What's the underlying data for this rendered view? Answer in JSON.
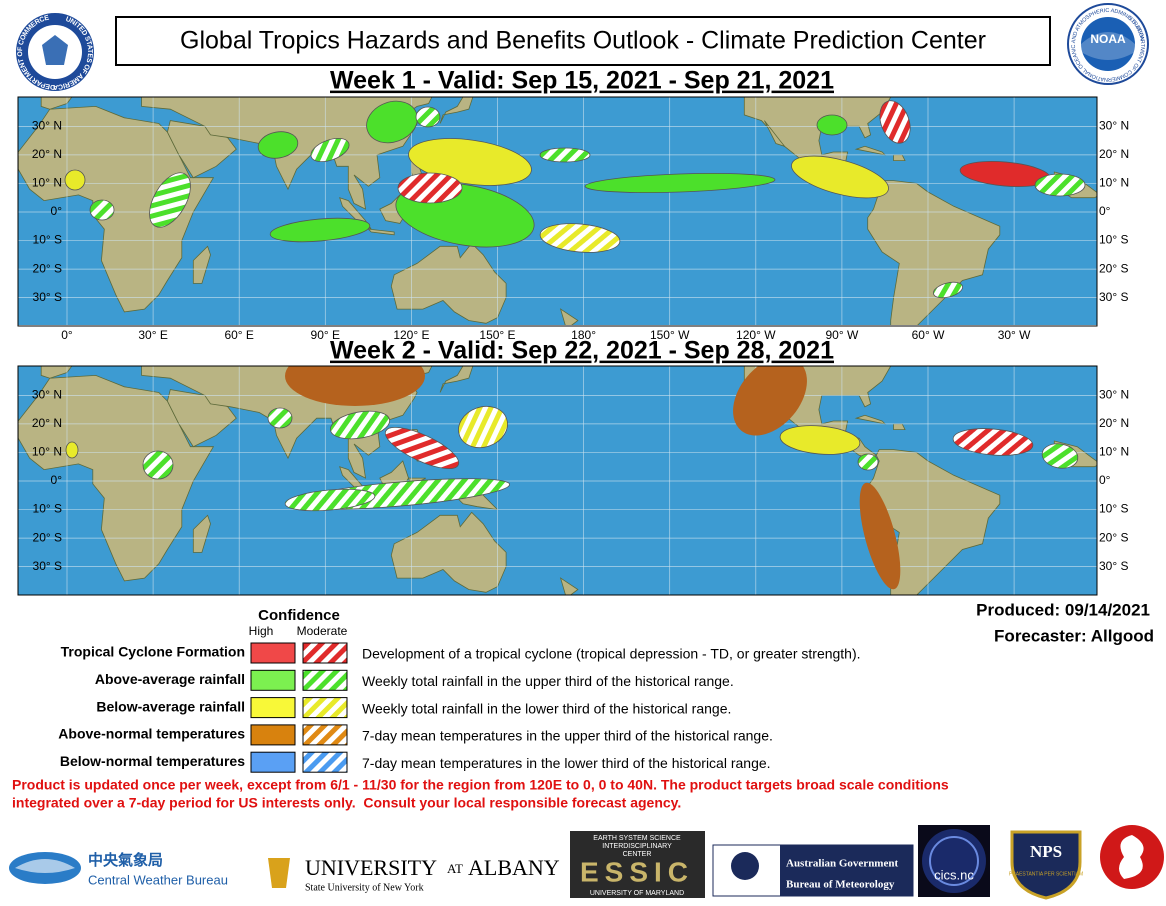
{
  "header": {
    "title": "Global Tropics Hazards and Benefits Outlook - Climate Prediction Center",
    "left_seal": [
      "DEPARTMENT OF COMMERCE",
      "UNITED STATES OF AMERICA"
    ],
    "right_seal": [
      "NATIONAL OCEANIC AND ATMOSPHERIC ADMINISTRATION",
      "U.S. DEPARTMENT OF COMMERCE",
      "NOAA"
    ]
  },
  "maps": [
    {
      "title": "Week 1 - Valid: Sep 15, 2021 - Sep 21, 2021"
    },
    {
      "title": "Week 2 - Valid: Sep 22, 2021 - Sep 28, 2021"
    }
  ],
  "lat_labels": [
    "30° N",
    "20° N",
    "10° N",
    "0°",
    "10° S",
    "20° S",
    "30° S"
  ],
  "lon_labels": [
    "0°",
    "30° E",
    "60° E",
    "90° E",
    "120° E",
    "150° E",
    "180°",
    "150° W",
    "120° W",
    "90° W",
    "60° W",
    "30° W"
  ],
  "legend": {
    "title": "Confidence",
    "high": "High",
    "moderate": "Moderate",
    "rows": [
      {
        "label": "Tropical Cyclone Formation",
        "description": "Development of a tropical cyclone (tropical depression - TD, or greater strength)."
      },
      {
        "label": "Above-average rainfall",
        "description": "Weekly total rainfall in the upper third of the historical range."
      },
      {
        "label": "Below-average rainfall",
        "description": "Weekly total rainfall in the lower third of the historical range."
      },
      {
        "label": "Above-normal temperatures",
        "description": "7-day mean temperatures in the upper third of the historical range."
      },
      {
        "label": "Below-normal temperatures",
        "description": "7-day mean temperatures in the lower third of the historical range."
      }
    ]
  },
  "produced": "Produced: 09/14/2021",
  "forecaster": "Forecaster: Allgood",
  "disclaimer": [
    "Product is updated once per week, except from 6/1 - 11/30 for the region from 120E to 0, 0 to 40N. The product targets broad scale conditions",
    "integrated over a 7-day period for US interests only.  Consult your local responsible forecast agency."
  ],
  "logos": {
    "cwb_chinese": "中央氣象局",
    "cwb": "Central Weather Bureau",
    "albany_university": "UNIVERSITY",
    "albany_at": "AT",
    "albany_name": "ALBANY",
    "albany_sub": "State University of New York",
    "essic_top": "EARTH SYSTEM SCIENCE",
    "essic_mid": "INTERDISCIPLINARY",
    "essic_center": "CENTER",
    "essic": "ESSIC",
    "essic_bottom": "UNIVERSITY OF MARYLAND",
    "bom_gov": "Australian Government",
    "bom": "Bureau of Meteorology",
    "cics": "cics.nc",
    "nps": "NPS",
    "nps_motto": "PRAESTANTIA PER SCIENTIAM"
  }
}
